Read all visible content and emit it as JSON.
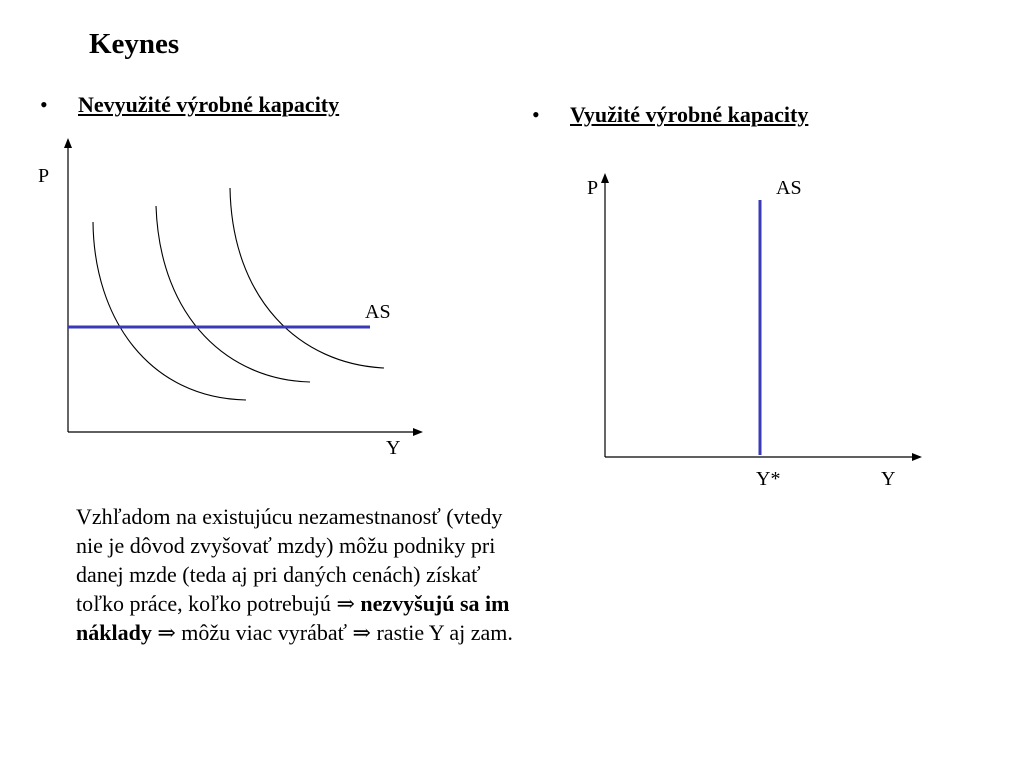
{
  "slide": {
    "title": "Keynes",
    "left_heading": "Nevyužité výrobné kapacity",
    "right_heading": "Využité výrobné kapacity",
    "bullet_symbol": "•"
  },
  "left_diagram": {
    "y_axis_label": "P",
    "x_axis_label": "Y",
    "curve_label": "AS",
    "as_line_color": "#3a3ab8"
  },
  "right_diagram": {
    "y_axis_label": "P",
    "x_axis_label": "Y",
    "curve_label": "AS",
    "y_star_label": "Y*",
    "as_line_color": "#3a3ab8"
  },
  "paragraph": {
    "part1": "Vzhľadom na existujúcu nezamestnanosť (vtedy nie je dôvod zvyšovať mzdy) môžu podniky pri danej mzde (teda aj pri daných cenách) získať toľko práce, koľko potrebujú ",
    "arrow": "⇒",
    "bold": "nezvyšujú sa im náklady",
    "part2": " môžu viac vyrábať ",
    "part3": " rastie Y aj zam."
  }
}
